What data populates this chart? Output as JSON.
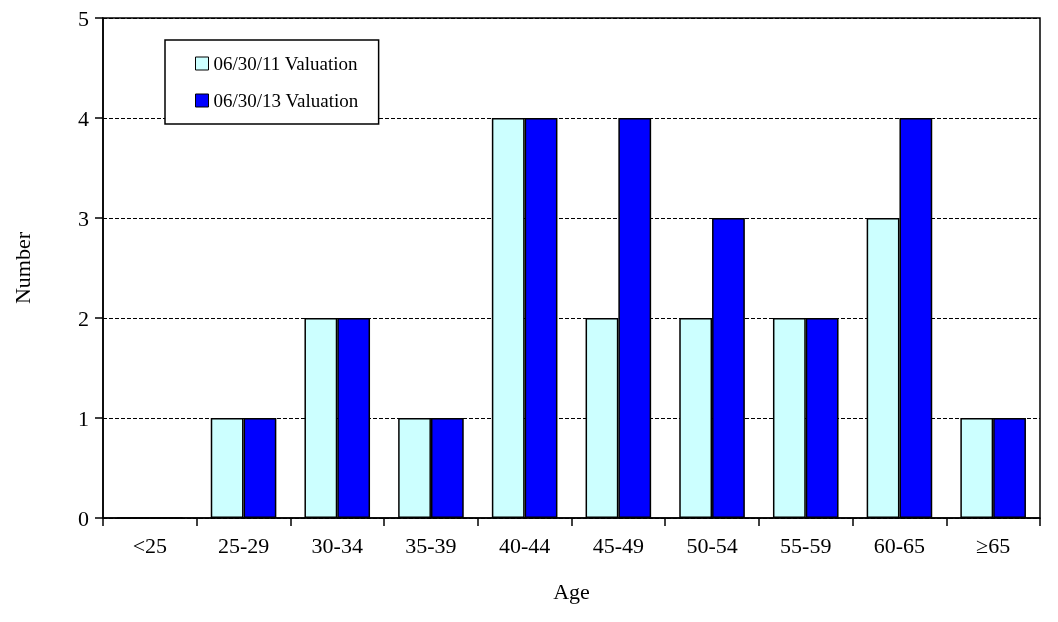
{
  "chart_data": {
    "type": "bar",
    "xlabel": "Age",
    "ylabel": "Number",
    "categories": [
      "<25",
      "25-29",
      "30-34",
      "35-39",
      "40-44",
      "45-49",
      "50-54",
      "55-59",
      "60-65",
      "≥65"
    ],
    "series": [
      {
        "name": "06/30/11 Valuation",
        "color": "#ccffff",
        "values": [
          0,
          1,
          2,
          1,
          4,
          2,
          2,
          2,
          3,
          1
        ]
      },
      {
        "name": "06/30/13 Valuation",
        "color": "#0000ff",
        "values": [
          0,
          1,
          2,
          1,
          4,
          4,
          3,
          2,
          4,
          1
        ]
      }
    ],
    "ylim": [
      0,
      5
    ],
    "yticks": [
      0,
      1,
      2,
      3,
      4,
      5
    ],
    "grid": "y",
    "legend": "top left"
  }
}
